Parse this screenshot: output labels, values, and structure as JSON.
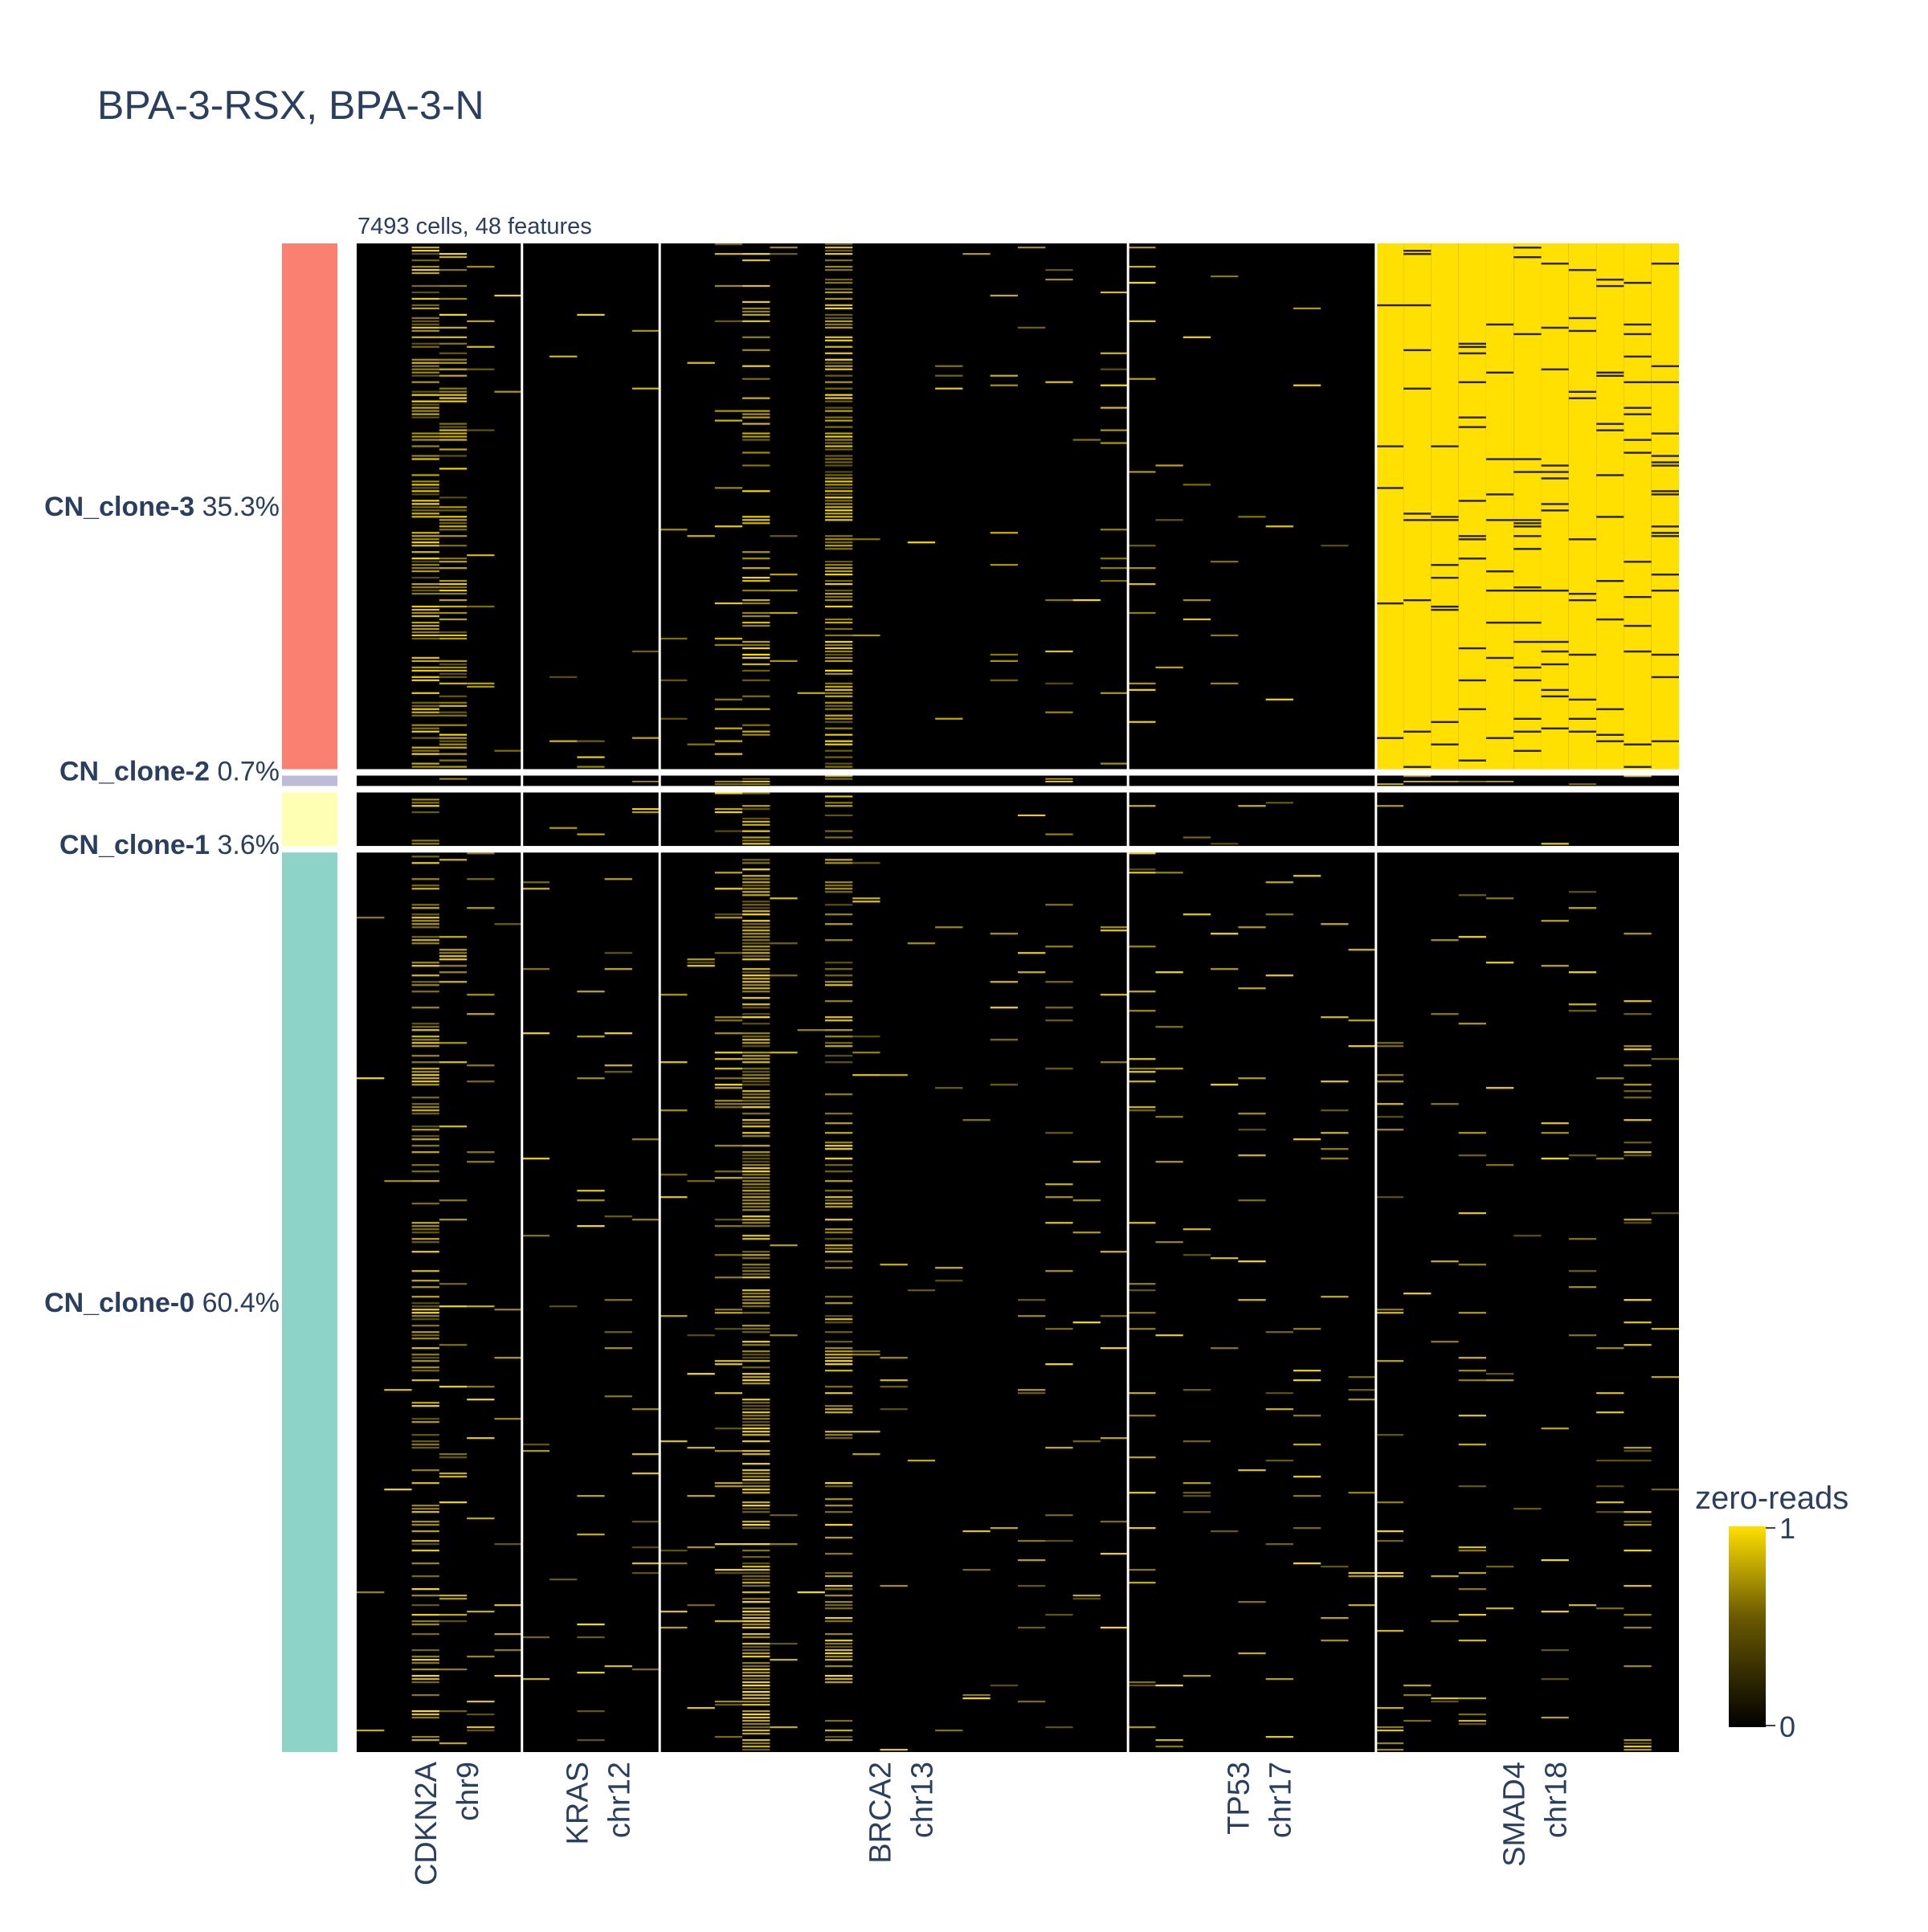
{
  "title": "BPA-3-RSX, BPA-3-N",
  "subtitle": "7493 cells, 48 features",
  "chart_data": {
    "type": "heatmap",
    "title": "BPA-3-RSX, BPA-3-N",
    "subtitle": "7493 cells, 48 features",
    "n_cells": 7493,
    "n_features": 48,
    "colorbar": {
      "title": "zero-reads",
      "min": 0,
      "max": 1,
      "tick_labels": [
        "0",
        "1"
      ],
      "low_color": "#000000",
      "high_color": "#ffe000"
    },
    "clones": [
      {
        "name": "CN_clone-3",
        "percent": "35.3%",
        "fraction": 0.353,
        "color": "#fa8072"
      },
      {
        "name": "CN_clone-2",
        "percent": "0.7%",
        "fraction": 0.007,
        "color": "#bebada"
      },
      {
        "name": "CN_clone-1",
        "percent": "3.6%",
        "fraction": 0.036,
        "color": "#ffffb3"
      },
      {
        "name": "CN_clone-0",
        "percent": "60.4%",
        "fraction": 0.604,
        "color": "#8dd3c7"
      }
    ],
    "chromosomes": [
      {
        "chrom": "chr9",
        "gene": "CDKN2A",
        "n_features": 6
      },
      {
        "chrom": "chr12",
        "gene": "KRAS",
        "n_features": 5
      },
      {
        "chrom": "chr13",
        "gene": "BRCA2",
        "n_features": 17
      },
      {
        "chrom": "chr17",
        "gene": "TP53",
        "n_features": 9
      },
      {
        "chrom": "chr18",
        "gene": "SMAD4",
        "n_features": 11
      }
    ],
    "zero_read_rates": {
      "CN_clone-3": [
        0.0,
        0.0,
        0.55,
        0.45,
        0.05,
        0.02,
        0.0,
        0.01,
        0.01,
        0.01,
        0.02,
        0.01,
        0.02,
        0.12,
        0.35,
        0.02,
        0.01,
        0.7,
        0.01,
        0.01,
        0.01,
        0.01,
        0.01,
        0.04,
        0.03,
        0.04,
        0.01,
        0.06,
        0.04,
        0.01,
        0.01,
        0.01,
        0.01,
        0.01,
        0.01,
        0.01,
        0.01,
        0.93,
        0.93,
        0.92,
        0.93,
        0.91,
        0.93,
        0.92,
        0.93,
        0.92,
        0.93,
        0.92
      ],
      "CN_clone-2": [
        0.0,
        0.0,
        0.2,
        0.2,
        0.1,
        0.0,
        0.0,
        0.0,
        0.0,
        0.0,
        0.1,
        0.0,
        0.0,
        0.1,
        0.7,
        0.0,
        0.0,
        0.4,
        0.0,
        0.0,
        0.0,
        0.0,
        0.0,
        0.0,
        0.0,
        0.1,
        0.0,
        0.0,
        0.0,
        0.0,
        0.0,
        0.0,
        0.0,
        0.0,
        0.1,
        0.1,
        0.0,
        0.05,
        0.05,
        0.05,
        0.05,
        0.05,
        0.05,
        0.05,
        0.05,
        0.05,
        0.05,
        0.05
      ],
      "CN_clone-1": [
        0.0,
        0.01,
        0.3,
        0.1,
        0.02,
        0.0,
        0.0,
        0.02,
        0.02,
        0.01,
        0.05,
        0.0,
        0.01,
        0.15,
        0.6,
        0.01,
        0.01,
        0.3,
        0.01,
        0.01,
        0.01,
        0.01,
        0.01,
        0.01,
        0.02,
        0.04,
        0.01,
        0.02,
        0.03,
        0.01,
        0.01,
        0.01,
        0.01,
        0.02,
        0.01,
        0.05,
        0.01,
        0.02,
        0.01,
        0.01,
        0.02,
        0.01,
        0.01,
        0.02,
        0.01,
        0.02,
        0.03,
        0.01
      ],
      "CN_clone-0": [
        0.01,
        0.02,
        0.42,
        0.12,
        0.06,
        0.03,
        0.02,
        0.02,
        0.04,
        0.02,
        0.03,
        0.02,
        0.03,
        0.14,
        0.78,
        0.03,
        0.02,
        0.4,
        0.03,
        0.03,
        0.02,
        0.02,
        0.02,
        0.02,
        0.04,
        0.05,
        0.03,
        0.06,
        0.12,
        0.03,
        0.03,
        0.02,
        0.03,
        0.02,
        0.03,
        0.05,
        0.04,
        0.05,
        0.02,
        0.02,
        0.07,
        0.02,
        0.02,
        0.03,
        0.02,
        0.03,
        0.09,
        0.02
      ]
    }
  }
}
